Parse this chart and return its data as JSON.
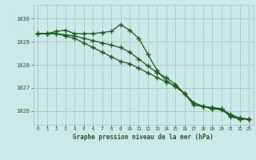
{
  "title": "Graphe pression niveau de la mer (hPa)",
  "background_color": "#cce8e8",
  "grid_color": "#aacccc",
  "line_color": "#1a5c1a",
  "xlim": [
    -0.5,
    23.5
  ],
  "ylim": [
    1025.4,
    1030.6
  ],
  "yticks": [
    1026,
    1027,
    1028,
    1029,
    1030
  ],
  "xticks": [
    0,
    1,
    2,
    3,
    4,
    5,
    6,
    7,
    8,
    9,
    10,
    11,
    12,
    13,
    14,
    15,
    16,
    17,
    18,
    19,
    20,
    21,
    22,
    23
  ],
  "series": [
    {
      "x": [
        0,
        1,
        2,
        3,
        4,
        5,
        6,
        7,
        8,
        9,
        10,
        11,
        12,
        13,
        14,
        15,
        16,
        17,
        18,
        19,
        20,
        21,
        22,
        23
      ],
      "y": [
        1029.35,
        1029.35,
        1029.45,
        1029.5,
        1029.35,
        1029.35,
        1029.35,
        1029.4,
        1029.45,
        1029.75,
        1029.5,
        1029.15,
        1028.45,
        1027.75,
        1027.3,
        1027.05,
        1026.75,
        1026.25,
        1026.2,
        1026.1,
        1026.1,
        1025.75,
        1025.65,
        1025.65
      ]
    },
    {
      "x": [
        0,
        1,
        2,
        3,
        4,
        5,
        6,
        7,
        8,
        9,
        10,
        11,
        12,
        13,
        14,
        15,
        16,
        17,
        18,
        19,
        20,
        21,
        22,
        23
      ],
      "y": [
        1029.35,
        1029.35,
        1029.35,
        1029.25,
        1029.15,
        1028.95,
        1028.75,
        1028.55,
        1028.35,
        1028.15,
        1028.05,
        1027.85,
        1027.65,
        1027.45,
        1027.25,
        1027.1,
        1026.75,
        1026.35,
        1026.2,
        1026.15,
        1026.1,
        1025.85,
        1025.7,
        1025.65
      ]
    },
    {
      "x": [
        0,
        1,
        2,
        3,
        4,
        5,
        6,
        7,
        8,
        9,
        10,
        11,
        12,
        13,
        14,
        15,
        16,
        17,
        18,
        19,
        20,
        21,
        22,
        23
      ],
      "y": [
        1029.35,
        1029.35,
        1029.35,
        1029.3,
        1029.25,
        1029.15,
        1029.05,
        1028.95,
        1028.85,
        1028.75,
        1028.55,
        1028.25,
        1027.95,
        1027.65,
        1027.45,
        1027.15,
        1026.75,
        1026.35,
        1026.2,
        1026.1,
        1026.05,
        1025.8,
        1025.65,
        1025.65
      ]
    }
  ]
}
